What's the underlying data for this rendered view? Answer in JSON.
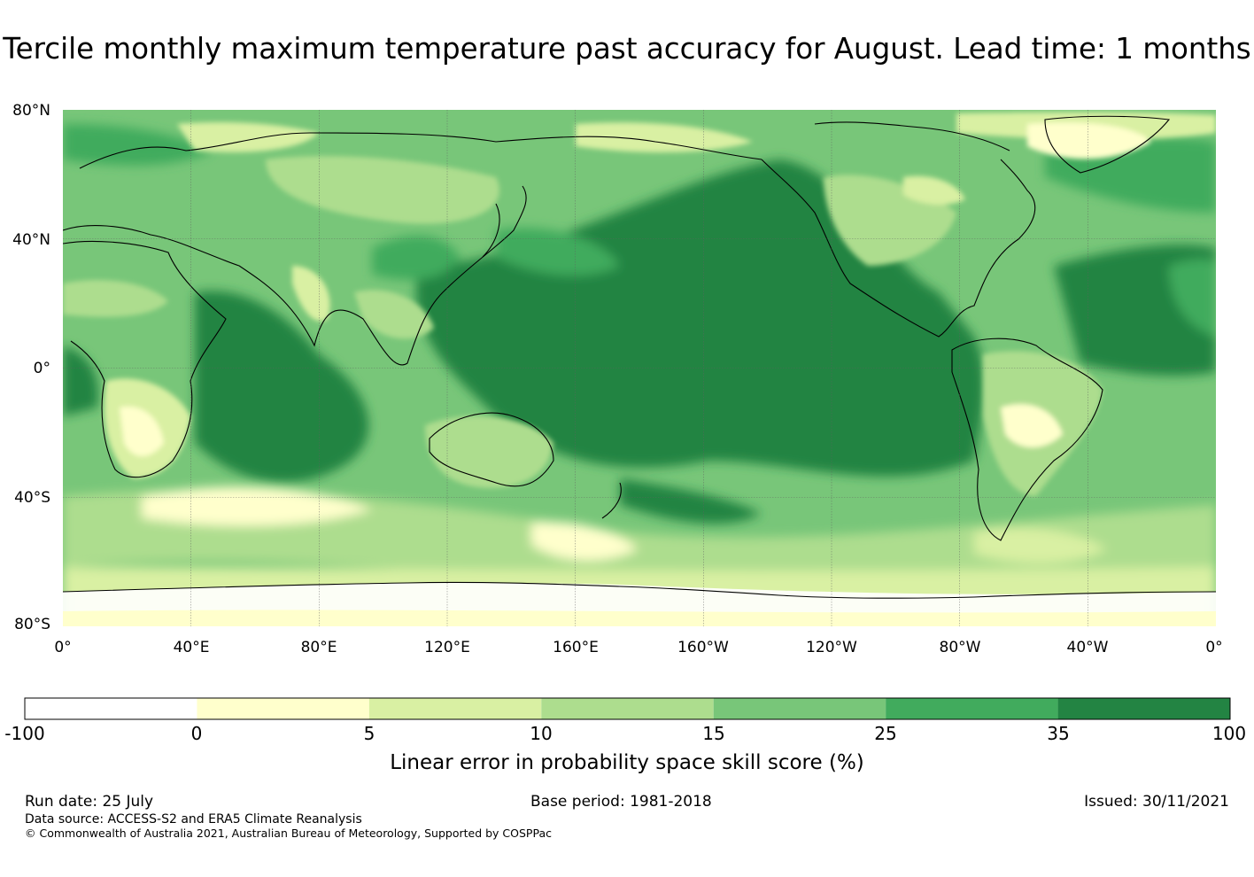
{
  "title": "Tercile monthly maximum temperature past accuracy for August. Lead time: 1 months",
  "map": {
    "lat_ticks": [
      "80°N",
      "40°N",
      "0°",
      "40°S",
      "80°S"
    ],
    "lon_ticks": [
      "0°",
      "40°E",
      "80°E",
      "120°E",
      "160°E",
      "160°W",
      "120°W",
      "80°W",
      "40°W",
      "0°"
    ],
    "legend_colors": {
      "-100 to 0": "#ffffff",
      "0 to 5": "#ffffcc",
      "5 to 10": "#d9f0a3",
      "10 to 15": "#addd8e",
      "15 to 25": "#78c679",
      "25 to 35": "#41ab5d",
      "35 to 100": "#238443"
    }
  },
  "colorbar": {
    "tick_labels": [
      "-100",
      "0",
      "5",
      "10",
      "15",
      "25",
      "35",
      "100"
    ],
    "colors": [
      "#ffffff",
      "#ffffcc",
      "#d9f0a3",
      "#addd8e",
      "#78c679",
      "#41ab5d",
      "#238443"
    ],
    "label": "Linear error in probability space skill score (%)"
  },
  "footer": {
    "run_date": "Run date: 25 July",
    "base_period": "Base period: 1981-2018",
    "issued": "Issued: 30/11/2021",
    "data_source": "Data source: ACCESS-S2 and ERA5 Climate Reanalysis",
    "copyright": "© Commonwealth of Australia 2021, Australian Bureau of Meteorology, Supported by COSPPac"
  }
}
